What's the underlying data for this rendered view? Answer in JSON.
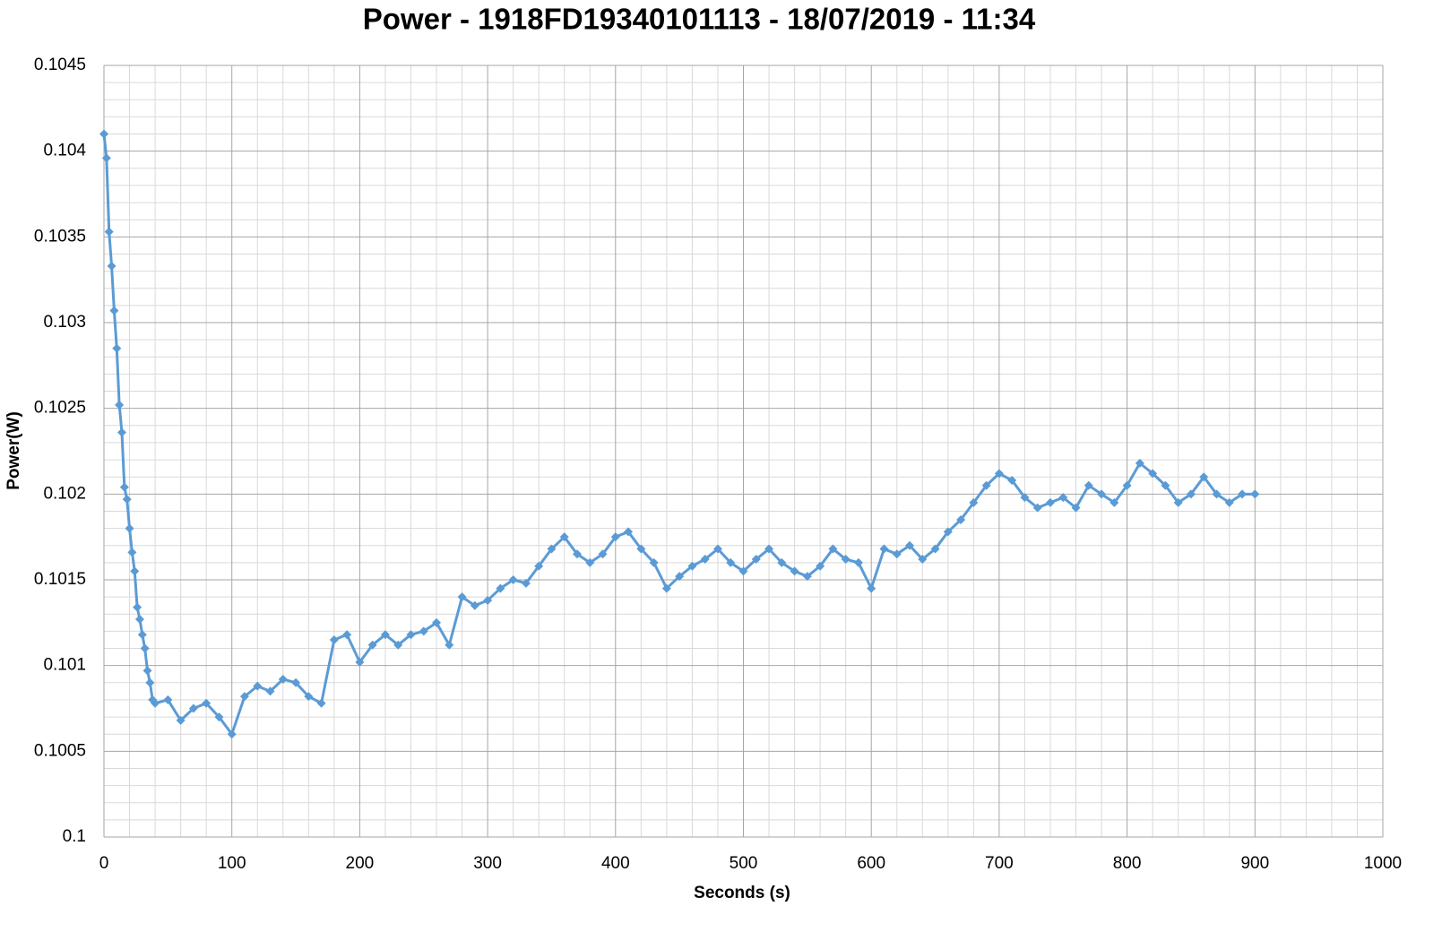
{
  "chart_data": {
    "type": "line",
    "title": "Power - 1918FD19340101113 - 18/07/2019 - 11:34",
    "x_label": "Seconds (s)",
    "y_label": "Power(W)",
    "xlim": [
      0,
      1000
    ],
    "xticks": [
      0,
      100,
      200,
      300,
      400,
      500,
      600,
      700,
      800,
      900,
      1000
    ],
    "ylim": [
      0.1,
      0.1045
    ],
    "yticks": [
      0.1,
      0.1005,
      0.101,
      0.1015,
      0.102,
      0.1025,
      0.103,
      0.1035,
      0.104,
      0.1045
    ],
    "grid": true,
    "x": [
      0,
      2,
      4,
      6,
      8,
      10,
      12,
      14,
      16,
      18,
      20,
      22,
      24,
      26,
      28,
      30,
      32,
      34,
      36,
      38,
      40,
      50,
      60,
      70,
      80,
      90,
      100,
      110,
      120,
      130,
      140,
      150,
      160,
      170,
      180,
      190,
      200,
      210,
      220,
      230,
      240,
      250,
      260,
      270,
      280,
      290,
      300,
      310,
      320,
      330,
      340,
      350,
      360,
      370,
      380,
      390,
      400,
      410,
      420,
      430,
      440,
      450,
      460,
      470,
      480,
      490,
      500,
      510,
      520,
      530,
      540,
      550,
      560,
      570,
      580,
      590,
      600,
      610,
      620,
      630,
      640,
      650,
      660,
      670,
      680,
      690,
      700,
      710,
      720,
      730,
      740,
      750,
      760,
      770,
      780,
      790,
      800,
      810,
      820,
      830,
      840,
      850,
      860,
      870,
      880,
      890,
      900
    ],
    "series": [
      {
        "color": "#5b9bd5",
        "values": [
          0.1041,
          0.10396,
          0.10353,
          0.10333,
          0.10307,
          0.10285,
          0.10252,
          0.10236,
          0.10204,
          0.10197,
          0.1018,
          0.10166,
          0.10155,
          0.10134,
          0.10127,
          0.10118,
          0.1011,
          0.10097,
          0.1009,
          0.1008,
          0.10078,
          0.1008,
          0.10068,
          0.10075,
          0.10078,
          0.1007,
          0.1006,
          0.10082,
          0.10088,
          0.10085,
          0.10092,
          0.1009,
          0.10082,
          0.10078,
          0.10115,
          0.10118,
          0.10102,
          0.10112,
          0.10118,
          0.10112,
          0.10118,
          0.1012,
          0.10125,
          0.10112,
          0.1014,
          0.10135,
          0.10138,
          0.10145,
          0.1015,
          0.10148,
          0.10158,
          0.10168,
          0.10175,
          0.10165,
          0.1016,
          0.10165,
          0.10175,
          0.10178,
          0.10168,
          0.1016,
          0.10145,
          0.10152,
          0.10158,
          0.10162,
          0.10168,
          0.1016,
          0.10155,
          0.10162,
          0.10168,
          0.1016,
          0.10155,
          0.10152,
          0.10158,
          0.10168,
          0.10162,
          0.1016,
          0.10145,
          0.10168,
          0.10165,
          0.1017,
          0.10162,
          0.10168,
          0.10178,
          0.10185,
          0.10195,
          0.10205,
          0.10212,
          0.10208,
          0.10198,
          0.10192,
          0.10195,
          0.10198,
          0.10192,
          0.10205,
          0.102,
          0.10195,
          0.10205,
          0.10218,
          0.10212,
          0.10205,
          0.10195,
          0.102,
          0.1021,
          0.102,
          0.10195,
          0.102,
          0.102
        ]
      }
    ]
  }
}
